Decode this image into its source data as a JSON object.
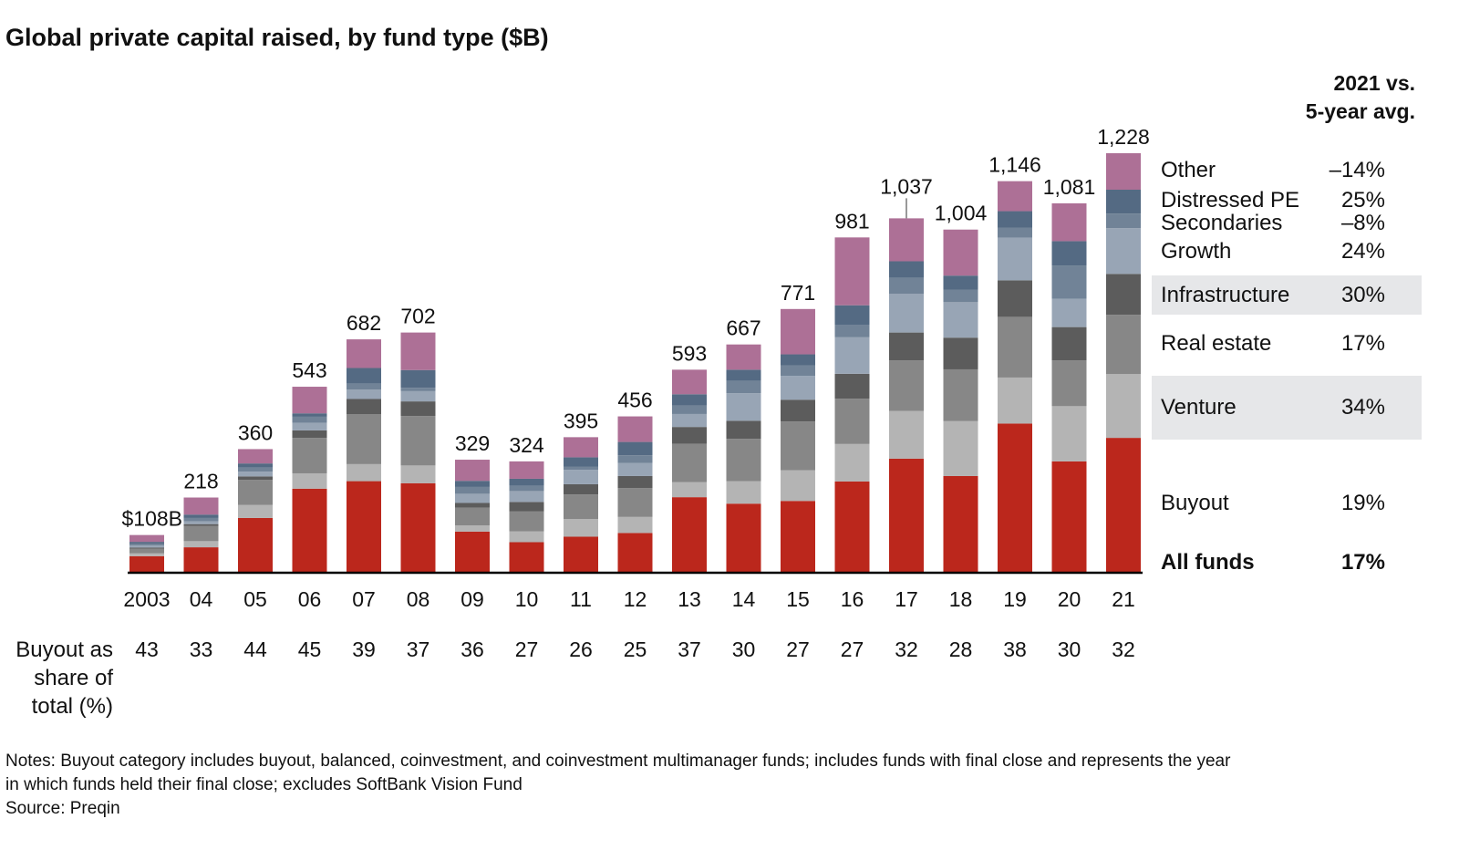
{
  "title": "Global private capital raised, by fund type ($B)",
  "comparison_header": [
    "2021 vs.",
    "5-year avg."
  ],
  "legend": [
    {
      "label": "Other",
      "value": "–14%",
      "shaded": false,
      "bold": false
    },
    {
      "label": "Distressed PE",
      "value": "25%",
      "shaded": false,
      "bold": false
    },
    {
      "label": "Secondaries",
      "value": "–8%",
      "shaded": false,
      "bold": false
    },
    {
      "label": "Growth",
      "value": "24%",
      "shaded": false,
      "bold": false
    },
    {
      "label": "Infrastructure",
      "value": "30%",
      "shaded": true,
      "bold": false
    },
    {
      "label": "Real estate",
      "value": "17%",
      "shaded": false,
      "bold": false
    },
    {
      "label": "Venture",
      "value": "34%",
      "shaded": true,
      "bold": false
    },
    {
      "label": "Buyout",
      "value": "19%",
      "shaded": false,
      "bold": false
    },
    {
      "label": "All funds",
      "value": "17%",
      "shaded": false,
      "bold": true
    }
  ],
  "share_row_label": [
    "Buyout as",
    "share of",
    "total (%)"
  ],
  "notes": [
    "Notes: Buyout category includes buyout, balanced, coinvestment, and coinvestment multimanager funds; includes funds with final close and represents the year",
    "in which funds held their final close; excludes SoftBank Vision Fund",
    "Source: Preqin"
  ],
  "chart_data": {
    "type": "bar",
    "stacked": true,
    "title": "Global private capital raised, by fund type ($B)",
    "xlabel": "",
    "ylabel": "$B",
    "ylim": [
      0,
      1228
    ],
    "grid": false,
    "legend_position": "right",
    "categories": [
      "2003",
      "04",
      "05",
      "06",
      "07",
      "08",
      "09",
      "10",
      "11",
      "12",
      "13",
      "14",
      "15",
      "16",
      "17",
      "18",
      "19",
      "20",
      "21"
    ],
    "totals": [
      108,
      218,
      360,
      543,
      682,
      702,
      329,
      324,
      395,
      456,
      593,
      667,
      771,
      981,
      1037,
      1004,
      1146,
      1081,
      1228
    ],
    "total_labels": [
      "$108B",
      "218",
      "360",
      "543",
      "682",
      "702",
      "329",
      "324",
      "395",
      "456",
      "593",
      "667",
      "771",
      "981",
      "1,037",
      "1,004",
      "1,146",
      "1,081",
      "1,228"
    ],
    "buyout_share_pct": [
      43,
      33,
      44,
      45,
      39,
      37,
      36,
      27,
      26,
      25,
      37,
      30,
      27,
      27,
      32,
      28,
      38,
      30,
      32
    ],
    "series": [
      {
        "name": "Buyout",
        "color": "#bb271c",
        "values": [
          46,
          72,
          158,
          244,
          266,
          260,
          118,
          87,
          103,
          114,
          219,
          200,
          208,
          265,
          332,
          281,
          435,
          324,
          393
        ]
      },
      {
        "name": "Venture",
        "color": "#b4b4b4",
        "values": [
          8,
          18,
          38,
          45,
          50,
          52,
          18,
          32,
          52,
          47,
          44,
          66,
          90,
          110,
          140,
          161,
          135,
          162,
          187
        ]
      },
      {
        "name": "Real estate",
        "color": "#878787",
        "values": [
          14,
          45,
          74,
          104,
          146,
          145,
          52,
          58,
          72,
          85,
          113,
          124,
          143,
          133,
          148,
          152,
          178,
          134,
          174
        ]
      },
      {
        "name": "Infrastructure",
        "color": "#5c5c5c",
        "values": [
          3,
          5,
          10,
          22,
          45,
          43,
          14,
          28,
          30,
          35,
          49,
          53,
          64,
          73,
          82,
          93,
          107,
          98,
          120
        ]
      },
      {
        "name": "Growth",
        "color": "#98a5b5",
        "values": [
          6,
          8,
          14,
          22,
          28,
          30,
          27,
          32,
          42,
          38,
          38,
          81,
          70,
          107,
          114,
          104,
          125,
          83,
          134
        ]
      },
      {
        "name": "Secondaries",
        "color": "#718397",
        "values": [
          5,
          10,
          12,
          18,
          17,
          10,
          20,
          16,
          10,
          23,
          25,
          36,
          30,
          36,
          47,
          36,
          30,
          97,
          43
        ]
      },
      {
        "name": "Distressed PE",
        "color": "#546a83",
        "values": [
          6,
          10,
          12,
          10,
          46,
          52,
          18,
          20,
          27,
          39,
          33,
          33,
          33,
          58,
          48,
          42,
          48,
          72,
          70
        ]
      },
      {
        "name": "Other",
        "color": "#ad7096",
        "values": [
          20,
          50,
          42,
          78,
          84,
          110,
          62,
          51,
          59,
          75,
          72,
          74,
          133,
          199,
          126,
          135,
          88,
          111,
          107
        ]
      }
    ]
  }
}
